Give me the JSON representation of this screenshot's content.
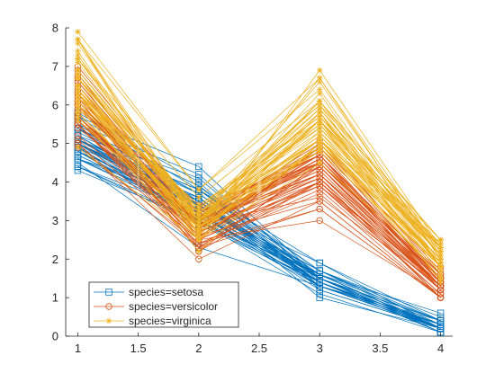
{
  "chart_data": {
    "type": "line",
    "title": "",
    "xlabel": "",
    "ylabel": "",
    "xlim": [
      0.9,
      4.1
    ],
    "ylim": [
      0,
      8
    ],
    "x": [
      1,
      2,
      3,
      4
    ],
    "xticks": [
      "1",
      "1.5",
      "2",
      "2.5",
      "3",
      "3.5",
      "4"
    ],
    "yticks": [
      "0",
      "1",
      "2",
      "3",
      "4",
      "5",
      "6",
      "7",
      "8"
    ],
    "grid": false,
    "legend_position": "bottom-left",
    "series": [
      {
        "name": "species=setosa",
        "color": "#0072BD",
        "marker": "square",
        "lines": [
          [
            5.1,
            3.5,
            1.4,
            0.2
          ],
          [
            4.9,
            3.0,
            1.4,
            0.2
          ],
          [
            4.7,
            3.2,
            1.3,
            0.2
          ],
          [
            4.6,
            3.1,
            1.5,
            0.2
          ],
          [
            5.0,
            3.6,
            1.4,
            0.2
          ],
          [
            5.4,
            3.9,
            1.7,
            0.4
          ],
          [
            4.6,
            3.4,
            1.4,
            0.3
          ],
          [
            5.0,
            3.4,
            1.5,
            0.2
          ],
          [
            4.4,
            2.9,
            1.4,
            0.2
          ],
          [
            4.9,
            3.1,
            1.5,
            0.1
          ],
          [
            5.4,
            3.7,
            1.5,
            0.2
          ],
          [
            4.8,
            3.4,
            1.6,
            0.2
          ],
          [
            4.8,
            3.0,
            1.4,
            0.1
          ],
          [
            4.3,
            3.0,
            1.1,
            0.1
          ],
          [
            5.8,
            4.0,
            1.2,
            0.2
          ],
          [
            5.7,
            4.4,
            1.5,
            0.4
          ],
          [
            5.4,
            3.9,
            1.3,
            0.4
          ],
          [
            5.1,
            3.5,
            1.4,
            0.3
          ],
          [
            5.7,
            3.8,
            1.7,
            0.3
          ],
          [
            5.1,
            3.8,
            1.5,
            0.3
          ],
          [
            5.4,
            3.4,
            1.7,
            0.2
          ],
          [
            5.1,
            3.7,
            1.5,
            0.4
          ],
          [
            4.6,
            3.6,
            1.0,
            0.2
          ],
          [
            5.1,
            3.3,
            1.7,
            0.5
          ],
          [
            4.8,
            3.4,
            1.9,
            0.2
          ],
          [
            5.0,
            3.0,
            1.6,
            0.2
          ],
          [
            5.0,
            3.4,
            1.6,
            0.4
          ],
          [
            5.2,
            3.5,
            1.5,
            0.2
          ],
          [
            5.2,
            3.4,
            1.4,
            0.2
          ],
          [
            4.7,
            3.2,
            1.6,
            0.2
          ],
          [
            4.8,
            3.1,
            1.6,
            0.2
          ],
          [
            5.4,
            3.4,
            1.5,
            0.4
          ],
          [
            5.2,
            4.1,
            1.5,
            0.1
          ],
          [
            5.5,
            4.2,
            1.4,
            0.2
          ],
          [
            4.9,
            3.1,
            1.5,
            0.2
          ],
          [
            5.0,
            3.2,
            1.2,
            0.2
          ],
          [
            5.5,
            3.5,
            1.3,
            0.2
          ],
          [
            4.9,
            3.6,
            1.4,
            0.1
          ],
          [
            4.4,
            3.0,
            1.3,
            0.2
          ],
          [
            5.1,
            3.4,
            1.5,
            0.2
          ],
          [
            5.0,
            3.5,
            1.3,
            0.3
          ],
          [
            4.5,
            2.3,
            1.3,
            0.3
          ],
          [
            4.4,
            3.2,
            1.3,
            0.2
          ],
          [
            5.0,
            3.5,
            1.6,
            0.6
          ],
          [
            5.1,
            3.8,
            1.9,
            0.4
          ],
          [
            4.8,
            3.0,
            1.4,
            0.3
          ],
          [
            5.1,
            3.8,
            1.6,
            0.2
          ],
          [
            4.6,
            3.2,
            1.4,
            0.2
          ],
          [
            5.3,
            3.7,
            1.5,
            0.2
          ],
          [
            5.0,
            3.3,
            1.4,
            0.2
          ]
        ]
      },
      {
        "name": "species=versicolor",
        "color": "#D95319",
        "marker": "circle",
        "lines": [
          [
            7.0,
            3.2,
            4.7,
            1.4
          ],
          [
            6.4,
            3.2,
            4.5,
            1.5
          ],
          [
            6.9,
            3.1,
            4.9,
            1.5
          ],
          [
            5.5,
            2.3,
            4.0,
            1.3
          ],
          [
            6.5,
            2.8,
            4.6,
            1.5
          ],
          [
            5.7,
            2.8,
            4.5,
            1.3
          ],
          [
            6.3,
            3.3,
            4.7,
            1.6
          ],
          [
            4.9,
            2.4,
            3.3,
            1.0
          ],
          [
            6.6,
            2.9,
            4.6,
            1.3
          ],
          [
            5.2,
            2.7,
            3.9,
            1.4
          ],
          [
            5.0,
            2.0,
            3.5,
            1.0
          ],
          [
            5.9,
            3.0,
            4.2,
            1.5
          ],
          [
            6.0,
            2.2,
            4.0,
            1.0
          ],
          [
            6.1,
            2.9,
            4.7,
            1.4
          ],
          [
            5.6,
            2.9,
            3.6,
            1.3
          ],
          [
            6.7,
            3.1,
            4.4,
            1.4
          ],
          [
            5.6,
            3.0,
            4.5,
            1.5
          ],
          [
            5.8,
            2.7,
            4.1,
            1.0
          ],
          [
            6.2,
            2.2,
            4.5,
            1.5
          ],
          [
            5.6,
            2.5,
            3.9,
            1.1
          ],
          [
            5.9,
            3.2,
            4.8,
            1.8
          ],
          [
            6.1,
            2.8,
            4.0,
            1.3
          ],
          [
            6.3,
            2.5,
            4.9,
            1.5
          ],
          [
            6.1,
            2.8,
            4.7,
            1.2
          ],
          [
            6.4,
            2.9,
            4.3,
            1.3
          ],
          [
            6.6,
            3.0,
            4.4,
            1.4
          ],
          [
            6.8,
            2.8,
            4.8,
            1.4
          ],
          [
            6.7,
            3.0,
            5.0,
            1.7
          ],
          [
            6.0,
            2.9,
            4.5,
            1.5
          ],
          [
            5.7,
            2.6,
            3.5,
            1.0
          ],
          [
            5.5,
            2.4,
            3.8,
            1.1
          ],
          [
            5.5,
            2.4,
            3.7,
            1.0
          ],
          [
            5.8,
            2.7,
            3.9,
            1.2
          ],
          [
            6.0,
            2.7,
            5.1,
            1.6
          ],
          [
            5.4,
            3.0,
            4.5,
            1.5
          ],
          [
            6.0,
            3.4,
            4.5,
            1.6
          ],
          [
            6.7,
            3.1,
            4.7,
            1.5
          ],
          [
            6.3,
            2.3,
            4.4,
            1.3
          ],
          [
            5.6,
            3.0,
            4.1,
            1.3
          ],
          [
            5.5,
            2.5,
            4.0,
            1.3
          ],
          [
            5.5,
            2.6,
            4.4,
            1.2
          ],
          [
            6.1,
            3.0,
            4.6,
            1.4
          ],
          [
            5.8,
            2.6,
            4.0,
            1.2
          ],
          [
            5.0,
            2.3,
            3.3,
            1.0
          ],
          [
            5.6,
            2.7,
            4.2,
            1.3
          ],
          [
            5.7,
            3.0,
            4.2,
            1.2
          ],
          [
            5.7,
            2.9,
            4.2,
            1.3
          ],
          [
            6.2,
            2.9,
            4.3,
            1.3
          ],
          [
            5.1,
            2.5,
            3.0,
            1.1
          ],
          [
            5.7,
            2.8,
            4.1,
            1.3
          ]
        ]
      },
      {
        "name": "species=virginica",
        "color": "#EDB120",
        "marker": "asterisk",
        "lines": [
          [
            6.3,
            3.3,
            6.0,
            2.5
          ],
          [
            5.8,
            2.7,
            5.1,
            1.9
          ],
          [
            7.1,
            3.0,
            5.9,
            2.1
          ],
          [
            6.3,
            2.9,
            5.6,
            1.8
          ],
          [
            6.5,
            3.0,
            5.8,
            2.2
          ],
          [
            7.6,
            3.0,
            6.6,
            2.1
          ],
          [
            4.9,
            2.5,
            4.5,
            1.7
          ],
          [
            7.3,
            2.9,
            6.3,
            1.8
          ],
          [
            6.7,
            2.5,
            5.8,
            1.8
          ],
          [
            7.2,
            3.6,
            6.1,
            2.5
          ],
          [
            6.5,
            3.2,
            5.1,
            2.0
          ],
          [
            6.4,
            2.7,
            5.3,
            1.9
          ],
          [
            6.8,
            3.0,
            5.5,
            2.1
          ],
          [
            5.7,
            2.5,
            5.0,
            2.0
          ],
          [
            5.8,
            2.8,
            5.1,
            2.4
          ],
          [
            6.4,
            3.2,
            5.3,
            2.3
          ],
          [
            6.5,
            3.0,
            5.5,
            1.8
          ],
          [
            7.7,
            3.8,
            6.7,
            2.2
          ],
          [
            7.7,
            2.6,
            6.9,
            2.3
          ],
          [
            6.0,
            2.2,
            5.0,
            1.5
          ],
          [
            6.9,
            3.2,
            5.7,
            2.3
          ],
          [
            5.6,
            2.8,
            4.9,
            2.0
          ],
          [
            7.7,
            2.8,
            6.7,
            2.0
          ],
          [
            6.3,
            2.7,
            4.9,
            1.8
          ],
          [
            6.7,
            3.3,
            5.7,
            2.1
          ],
          [
            7.2,
            3.2,
            6.0,
            1.8
          ],
          [
            6.2,
            2.8,
            4.8,
            1.8
          ],
          [
            6.1,
            3.0,
            4.9,
            1.8
          ],
          [
            6.4,
            2.8,
            5.6,
            2.1
          ],
          [
            7.2,
            3.0,
            5.8,
            1.6
          ],
          [
            7.4,
            2.8,
            6.1,
            1.9
          ],
          [
            7.9,
            3.8,
            6.4,
            2.0
          ],
          [
            6.4,
            2.8,
            5.6,
            2.2
          ],
          [
            6.3,
            2.8,
            5.1,
            1.5
          ],
          [
            6.1,
            2.6,
            5.6,
            1.4
          ],
          [
            7.7,
            3.0,
            6.1,
            2.3
          ],
          [
            6.3,
            3.4,
            5.6,
            2.4
          ],
          [
            6.4,
            3.1,
            5.5,
            1.8
          ],
          [
            6.0,
            3.0,
            4.8,
            1.8
          ],
          [
            6.9,
            3.1,
            5.4,
            2.1
          ],
          [
            6.7,
            3.1,
            5.6,
            2.4
          ],
          [
            6.9,
            3.1,
            5.1,
            2.3
          ],
          [
            5.8,
            2.7,
            5.1,
            1.9
          ],
          [
            6.8,
            3.2,
            5.9,
            2.3
          ],
          [
            6.7,
            3.3,
            5.7,
            2.5
          ],
          [
            6.7,
            3.0,
            5.2,
            2.3
          ],
          [
            6.3,
            2.5,
            5.0,
            1.9
          ],
          [
            6.5,
            3.0,
            5.2,
            2.0
          ],
          [
            6.2,
            3.4,
            5.4,
            2.3
          ],
          [
            5.9,
            3.0,
            5.1,
            1.8
          ]
        ]
      }
    ]
  }
}
